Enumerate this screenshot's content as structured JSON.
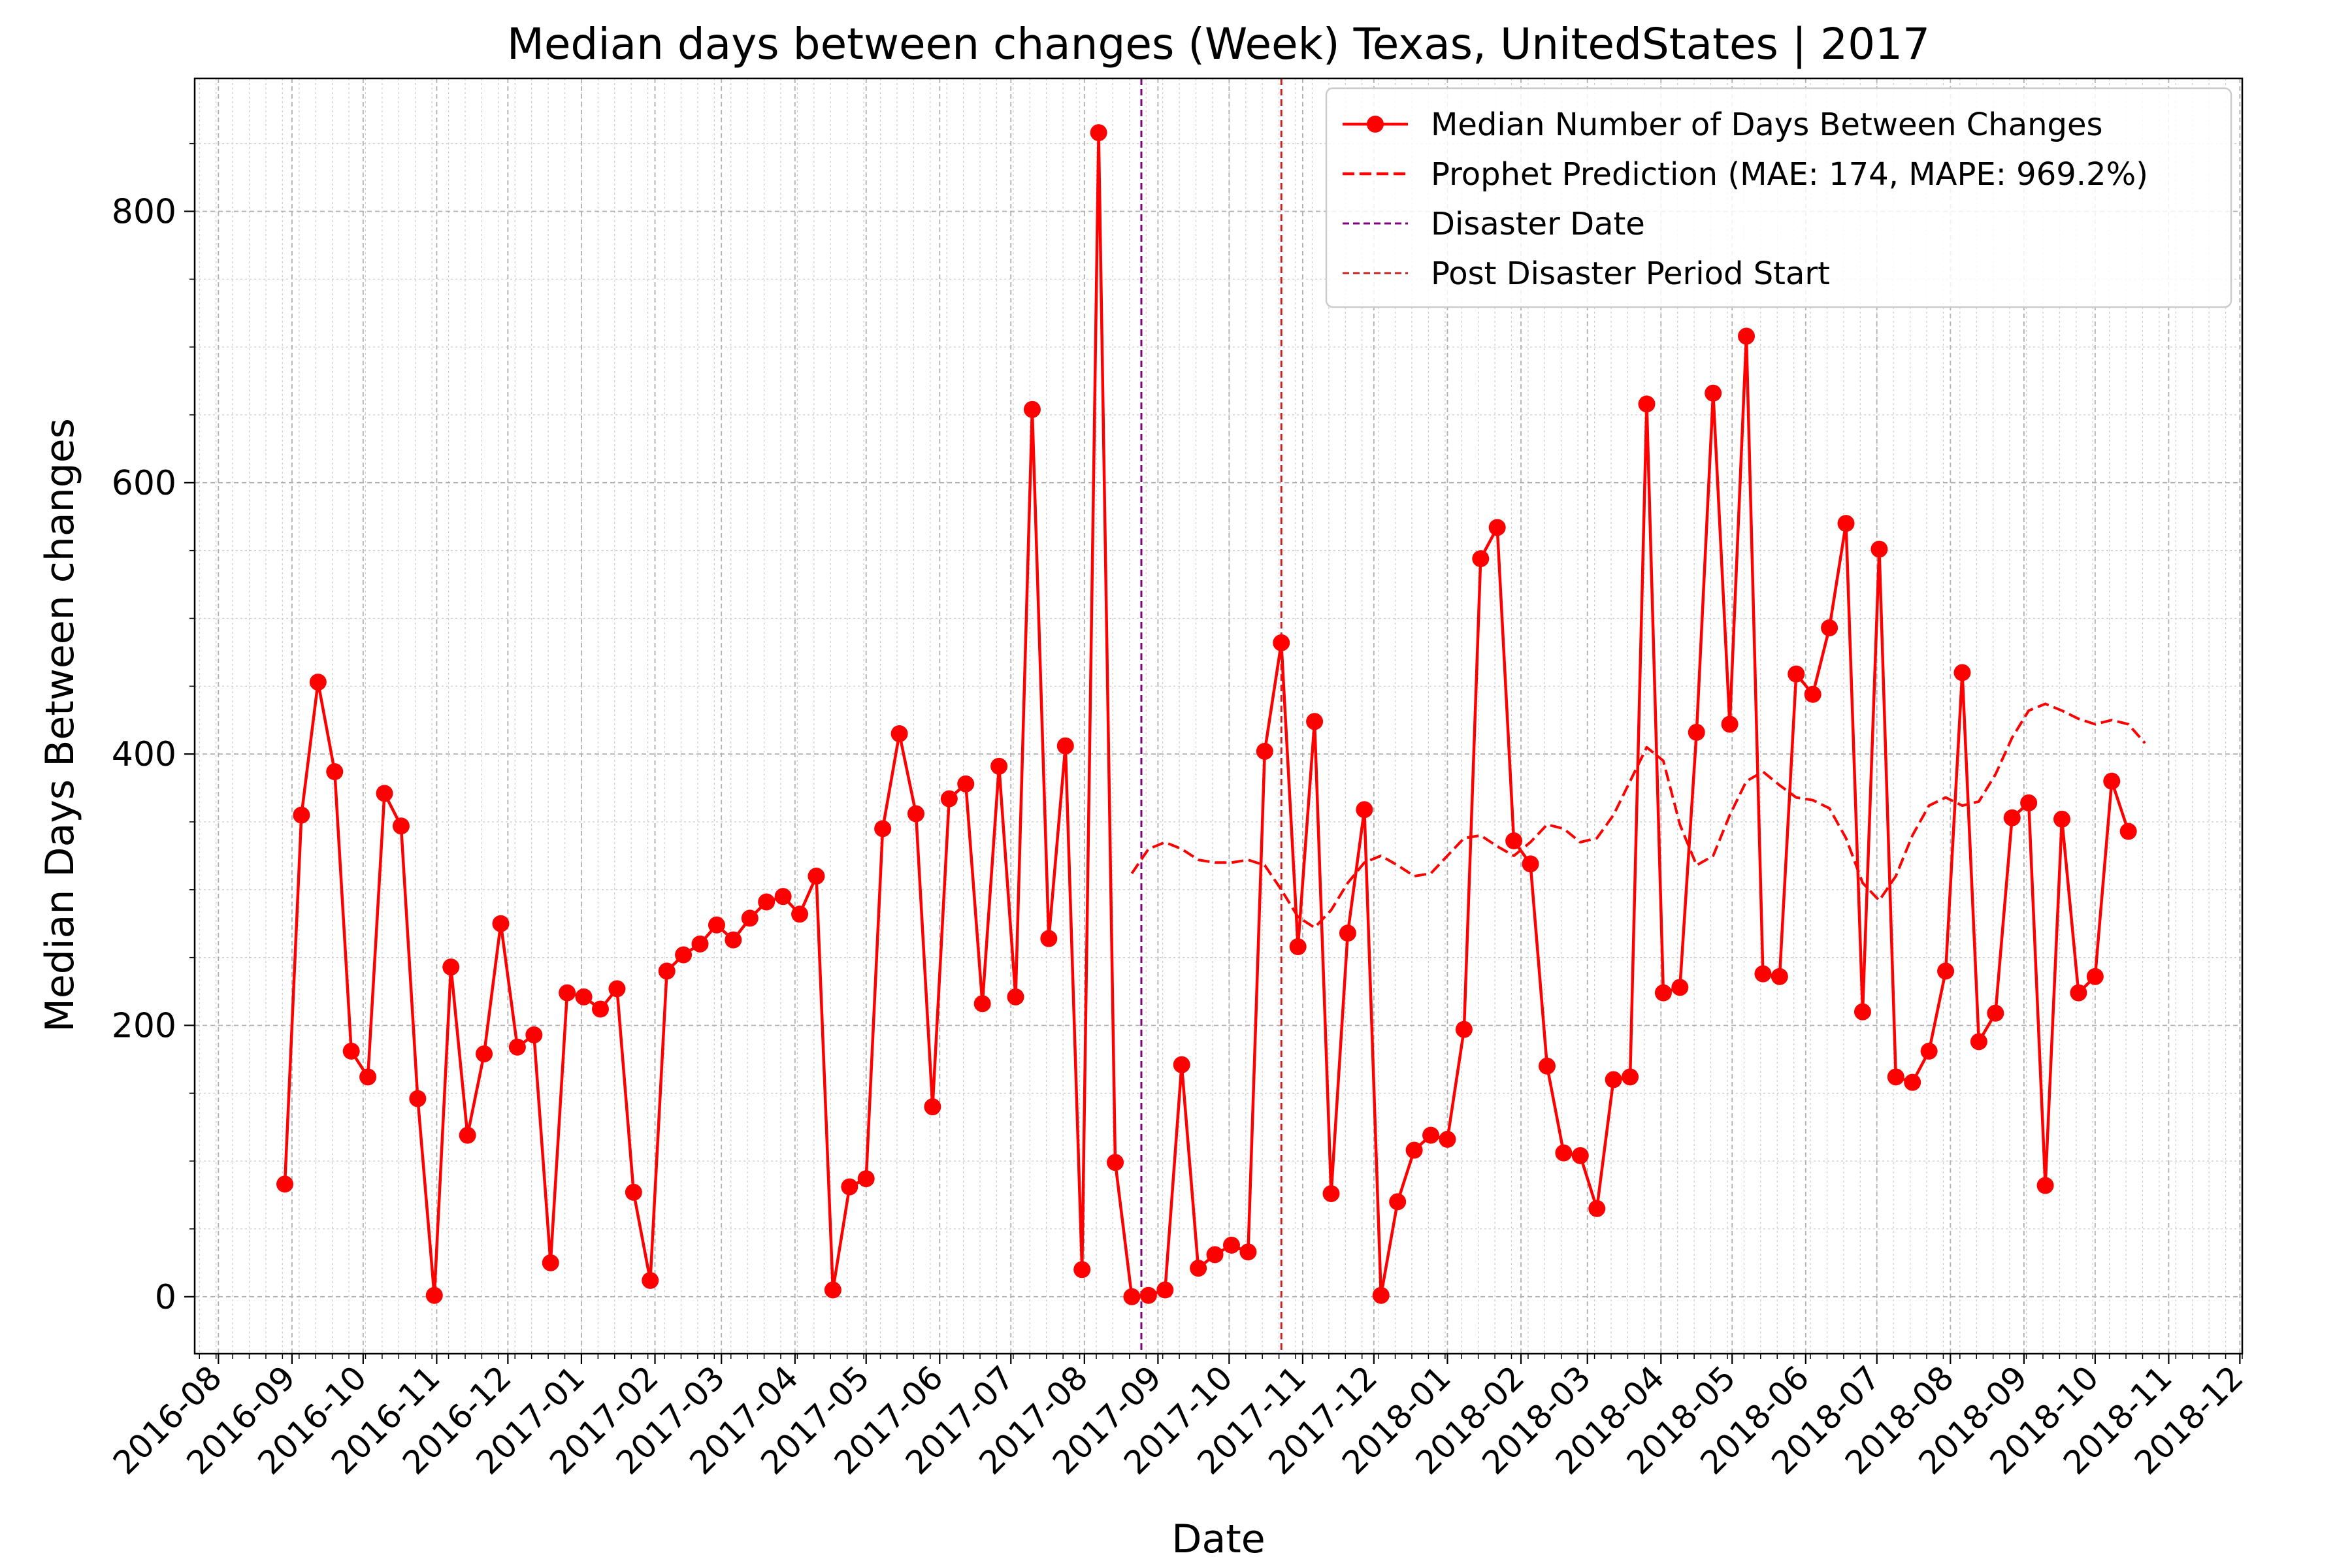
{
  "chart_data": {
    "type": "line",
    "title": "Median days between changes (Week) Texas, UnitedStates | 2017",
    "xlabel": "Date",
    "ylabel": "Median Days Between changes",
    "xlim": [
      "2016-07-22",
      "2018-12-02"
    ],
    "ylim": [
      -42,
      898
    ],
    "grid": true,
    "legend_position": "top-right",
    "x_ticks": [
      "2016-08",
      "2016-09",
      "2016-10",
      "2016-11",
      "2016-12",
      "2017-01",
      "2017-02",
      "2017-03",
      "2017-04",
      "2017-05",
      "2017-06",
      "2017-07",
      "2017-08",
      "2017-09",
      "2017-10",
      "2017-11",
      "2017-12",
      "2018-01",
      "2018-02",
      "2018-03",
      "2018-04",
      "2018-05",
      "2018-06",
      "2018-07",
      "2018-08",
      "2018-09",
      "2018-10",
      "2018-11",
      "2018-12"
    ],
    "y_ticks": [
      0,
      200,
      400,
      600,
      800
    ],
    "series": [
      {
        "name": "Median Number of Days Between Changes",
        "color": "#ff0000",
        "style": "solid-with-markers",
        "x": [
          "2016-08-29",
          "2016-09-05",
          "2016-09-12",
          "2016-09-19",
          "2016-09-26",
          "2016-10-03",
          "2016-10-10",
          "2016-10-17",
          "2016-10-24",
          "2016-10-31",
          "2016-11-07",
          "2016-11-14",
          "2016-11-21",
          "2016-11-28",
          "2016-12-05",
          "2016-12-12",
          "2016-12-19",
          "2016-12-26",
          "2017-01-02",
          "2017-01-09",
          "2017-01-16",
          "2017-01-23",
          "2017-01-30",
          "2017-02-06",
          "2017-02-13",
          "2017-02-20",
          "2017-02-27",
          "2017-03-06",
          "2017-03-13",
          "2017-03-20",
          "2017-03-27",
          "2017-04-03",
          "2017-04-10",
          "2017-04-17",
          "2017-04-24",
          "2017-05-01",
          "2017-05-08",
          "2017-05-15",
          "2017-05-22",
          "2017-05-29",
          "2017-06-05",
          "2017-06-12",
          "2017-06-19",
          "2017-06-26",
          "2017-07-03",
          "2017-07-10",
          "2017-07-17",
          "2017-07-24",
          "2017-07-31",
          "2017-08-07",
          "2017-08-14",
          "2017-08-21",
          "2017-08-28",
          "2017-09-04",
          "2017-09-11",
          "2017-09-18",
          "2017-09-25",
          "2017-10-02",
          "2017-10-09",
          "2017-10-16",
          "2017-10-23",
          "2017-10-30",
          "2017-11-06",
          "2017-11-13",
          "2017-11-20",
          "2017-11-27",
          "2017-12-04",
          "2017-12-11",
          "2017-12-18",
          "2017-12-25",
          "2018-01-01",
          "2018-01-08",
          "2018-01-15",
          "2018-01-22",
          "2018-01-29",
          "2018-02-05",
          "2018-02-12",
          "2018-02-19",
          "2018-02-26",
          "2018-03-05",
          "2018-03-12",
          "2018-03-19",
          "2018-03-26",
          "2018-04-02",
          "2018-04-09",
          "2018-04-16",
          "2018-04-23",
          "2018-04-30",
          "2018-05-07",
          "2018-05-14",
          "2018-05-21",
          "2018-05-28",
          "2018-06-04",
          "2018-06-11",
          "2018-06-18",
          "2018-06-25",
          "2018-07-02",
          "2018-07-09",
          "2018-07-16",
          "2018-07-23",
          "2018-07-30",
          "2018-08-06",
          "2018-08-13",
          "2018-08-20",
          "2018-08-27",
          "2018-09-03",
          "2018-09-10",
          "2018-09-17",
          "2018-09-24",
          "2018-10-01",
          "2018-10-08",
          "2018-10-15"
        ],
        "y": [
          83,
          355,
          453,
          387,
          181,
          162,
          371,
          347,
          146,
          1,
          243,
          119,
          179,
          275,
          184,
          193,
          25,
          224,
          221,
          212,
          227,
          77,
          12,
          240,
          252,
          260,
          274,
          263,
          279,
          291,
          295,
          282,
          310,
          5,
          81,
          87,
          345,
          415,
          356,
          140,
          367,
          378,
          216,
          391,
          221,
          654,
          264,
          406,
          20,
          858,
          99,
          0,
          1,
          5,
          171,
          21,
          31,
          38,
          33,
          402,
          482,
          258,
          424,
          76,
          268,
          359,
          1,
          70,
          108,
          119,
          116,
          197,
          544,
          567,
          336,
          319,
          170,
          106,
          104,
          65,
          160,
          162,
          658,
          224,
          228,
          416,
          666,
          422,
          708,
          238,
          236,
          459,
          444,
          493,
          570,
          210,
          551,
          162,
          158,
          181,
          240,
          460,
          188,
          209,
          353,
          364,
          82,
          352,
          224,
          236,
          380,
          343
        ]
      },
      {
        "name": "Prophet Prediction (MAE: 174, MAPE: 969.2%)",
        "color": "#ff0000",
        "style": "dashed",
        "x": [
          "2017-08-21",
          "2017-08-28",
          "2017-09-04",
          "2017-09-11",
          "2017-09-18",
          "2017-09-25",
          "2017-10-02",
          "2017-10-09",
          "2017-10-16",
          "2017-10-23",
          "2017-10-30",
          "2017-11-06",
          "2017-11-13",
          "2017-11-20",
          "2017-11-27",
          "2017-12-04",
          "2017-12-11",
          "2017-12-18",
          "2017-12-25",
          "2018-01-01",
          "2018-01-08",
          "2018-01-15",
          "2018-01-22",
          "2018-01-29",
          "2018-02-05",
          "2018-02-12",
          "2018-02-19",
          "2018-02-26",
          "2018-03-05",
          "2018-03-12",
          "2018-03-19",
          "2018-03-26",
          "2018-04-02",
          "2018-04-09",
          "2018-04-16",
          "2018-04-23",
          "2018-04-30",
          "2018-05-07",
          "2018-05-14",
          "2018-05-21",
          "2018-05-28",
          "2018-06-04",
          "2018-06-11",
          "2018-06-18",
          "2018-06-25",
          "2018-07-02",
          "2018-07-09",
          "2018-07-16",
          "2018-07-23",
          "2018-07-30",
          "2018-08-06",
          "2018-08-13",
          "2018-08-20",
          "2018-08-27",
          "2018-09-03",
          "2018-09-10",
          "2018-09-17",
          "2018-09-24",
          "2018-10-01",
          "2018-10-08",
          "2018-10-15",
          "2018-10-22"
        ],
        "y": [
          312,
          330,
          335,
          330,
          322,
          320,
          320,
          322,
          318,
          300,
          280,
          272,
          285,
          305,
          320,
          325,
          318,
          310,
          312,
          325,
          338,
          340,
          332,
          325,
          335,
          348,
          345,
          335,
          338,
          355,
          380,
          405,
          395,
          348,
          318,
          325,
          355,
          380,
          387,
          377,
          368,
          366,
          360,
          338,
          305,
          292,
          310,
          340,
          362,
          368,
          362,
          365,
          385,
          412,
          432,
          437,
          432,
          426,
          422,
          425,
          422,
          408
        ]
      }
    ],
    "vlines": [
      {
        "name": "Disaster Date",
        "x": "2017-08-25",
        "color": "#800080"
      },
      {
        "name": "Post Disaster Period Start",
        "x": "2017-10-23",
        "color": "#cc2222"
      }
    ]
  }
}
